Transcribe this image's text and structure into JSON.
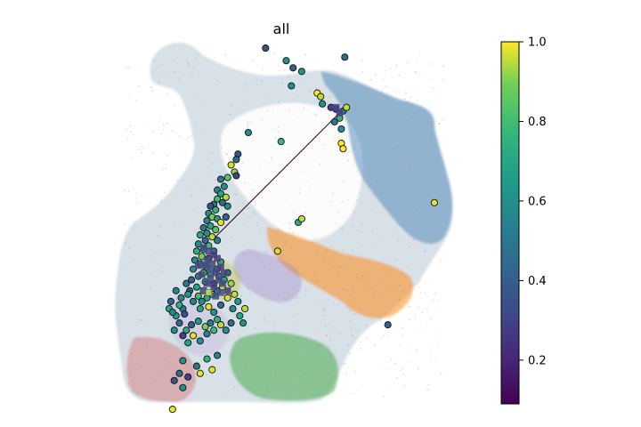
{
  "chart_data": {
    "type": "scatter",
    "title": "all",
    "xlabel": "",
    "ylabel": "",
    "axes_visible": false,
    "grid": false,
    "colorbar": {
      "colormap": "viridis",
      "range": [
        0.09,
        1.0
      ],
      "ticks": [
        0.2,
        0.4,
        0.6,
        0.8,
        1.0
      ],
      "tick_labels": [
        "0.2",
        "0.4",
        "0.6",
        "0.8",
        "1.0"
      ],
      "placement": "right"
    },
    "background_embedding": {
      "description_colors": [
        "#1f77b4",
        "#ff7f0e",
        "#2ca02c",
        "#d62728",
        "#9467bd",
        "#8c564b",
        "#bcbd22",
        "#aec7e8"
      ],
      "clusters": [
        {
          "name": "blue-grey outline",
          "color": "#9aaec0"
        },
        {
          "name": "blue",
          "color": "#3d7fb0"
        },
        {
          "name": "orange",
          "color": "#ff8c1a"
        },
        {
          "name": "green",
          "color": "#2ca02c"
        },
        {
          "name": "red",
          "color": "#d6504c"
        },
        {
          "name": "purple",
          "color": "#9b7fc4"
        },
        {
          "name": "olive",
          "color": "#bcbd22"
        }
      ]
    },
    "arrow": {
      "from": [
        0.295,
        0.46
      ],
      "to": [
        0.655,
        0.805
      ],
      "color": "#3b0f1a"
    },
    "points": [
      {
        "x": 0.44,
        "y": 0.985,
        "v": 0.35
      },
      {
        "x": 0.5,
        "y": 0.95,
        "v": 0.6
      },
      {
        "x": 0.52,
        "y": 0.93,
        "v": 0.4
      },
      {
        "x": 0.545,
        "y": 0.92,
        "v": 0.62
      },
      {
        "x": 0.67,
        "y": 0.96,
        "v": 0.45
      },
      {
        "x": 0.515,
        "y": 0.88,
        "v": 0.6
      },
      {
        "x": 0.59,
        "y": 0.86,
        "v": 1.0
      },
      {
        "x": 0.6,
        "y": 0.85,
        "v": 0.95
      },
      {
        "x": 0.605,
        "y": 0.83,
        "v": 0.62
      },
      {
        "x": 0.63,
        "y": 0.82,
        "v": 0.3
      },
      {
        "x": 0.645,
        "y": 0.815,
        "v": 0.25
      },
      {
        "x": 0.665,
        "y": 0.81,
        "v": 0.55
      },
      {
        "x": 0.675,
        "y": 0.82,
        "v": 0.95
      },
      {
        "x": 0.655,
        "y": 0.79,
        "v": 0.75
      },
      {
        "x": 0.64,
        "y": 0.78,
        "v": 0.5
      },
      {
        "x": 0.66,
        "y": 0.76,
        "v": 0.6
      },
      {
        "x": 0.66,
        "y": 0.72,
        "v": 1.0
      },
      {
        "x": 0.665,
        "y": 0.705,
        "v": 1.0
      },
      {
        "x": 0.39,
        "y": 0.75,
        "v": 0.58
      },
      {
        "x": 0.485,
        "y": 0.725,
        "v": 0.78
      },
      {
        "x": 0.93,
        "y": 0.555,
        "v": 0.98
      },
      {
        "x": 0.535,
        "y": 0.5,
        "v": 0.72
      },
      {
        "x": 0.545,
        "y": 0.51,
        "v": 0.95
      },
      {
        "x": 0.475,
        "y": 0.42,
        "v": 0.97
      },
      {
        "x": 0.795,
        "y": 0.215,
        "v": 0.4
      },
      {
        "x": 0.25,
        "y": 0.08,
        "v": 0.98
      },
      {
        "x": 0.36,
        "y": 0.69,
        "v": 0.35
      },
      {
        "x": 0.355,
        "y": 0.675,
        "v": 0.45
      },
      {
        "x": 0.34,
        "y": 0.66,
        "v": 0.97
      },
      {
        "x": 0.35,
        "y": 0.64,
        "v": 0.92
      },
      {
        "x": 0.31,
        "y": 0.62,
        "v": 0.5
      },
      {
        "x": 0.33,
        "y": 0.625,
        "v": 0.85
      },
      {
        "x": 0.355,
        "y": 0.63,
        "v": 0.3
      },
      {
        "x": 0.32,
        "y": 0.6,
        "v": 0.6
      },
      {
        "x": 0.3,
        "y": 0.59,
        "v": 0.55
      },
      {
        "x": 0.31,
        "y": 0.58,
        "v": 0.7
      },
      {
        "x": 0.3,
        "y": 0.565,
        "v": 0.8
      },
      {
        "x": 0.315,
        "y": 0.555,
        "v": 0.45
      },
      {
        "x": 0.325,
        "y": 0.57,
        "v": 0.95
      },
      {
        "x": 0.33,
        "y": 0.545,
        "v": 0.6
      },
      {
        "x": 0.29,
        "y": 0.55,
        "v": 0.5
      },
      {
        "x": 0.28,
        "y": 0.545,
        "v": 0.35
      },
      {
        "x": 0.295,
        "y": 0.535,
        "v": 0.75
      },
      {
        "x": 0.275,
        "y": 0.525,
        "v": 0.6
      },
      {
        "x": 0.285,
        "y": 0.515,
        "v": 0.9
      },
      {
        "x": 0.3,
        "y": 0.51,
        "v": 0.65
      },
      {
        "x": 0.27,
        "y": 0.505,
        "v": 0.55
      },
      {
        "x": 0.31,
        "y": 0.5,
        "v": 0.98
      },
      {
        "x": 0.325,
        "y": 0.515,
        "v": 0.4
      },
      {
        "x": 0.28,
        "y": 0.49,
        "v": 0.7
      },
      {
        "x": 0.26,
        "y": 0.485,
        "v": 0.5
      },
      {
        "x": 0.295,
        "y": 0.48,
        "v": 0.85
      },
      {
        "x": 0.27,
        "y": 0.47,
        "v": 0.62
      },
      {
        "x": 0.285,
        "y": 0.46,
        "v": 0.95
      },
      {
        "x": 0.25,
        "y": 0.465,
        "v": 0.72
      },
      {
        "x": 0.265,
        "y": 0.45,
        "v": 0.45
      },
      {
        "x": 0.3,
        "y": 0.45,
        "v": 0.55
      },
      {
        "x": 0.245,
        "y": 0.44,
        "v": 0.6
      },
      {
        "x": 0.275,
        "y": 0.435,
        "v": 0.8
      },
      {
        "x": 0.26,
        "y": 0.425,
        "v": 0.68
      },
      {
        "x": 0.29,
        "y": 0.42,
        "v": 0.5
      },
      {
        "x": 0.24,
        "y": 0.42,
        "v": 0.75
      },
      {
        "x": 0.255,
        "y": 0.405,
        "v": 0.9
      },
      {
        "x": 0.275,
        "y": 0.4,
        "v": 0.35
      },
      {
        "x": 0.235,
        "y": 0.395,
        "v": 0.58
      },
      {
        "x": 0.25,
        "y": 0.385,
        "v": 0.62
      },
      {
        "x": 0.27,
        "y": 0.375,
        "v": 0.7
      },
      {
        "x": 0.26,
        "y": 0.36,
        "v": 0.85
      },
      {
        "x": 0.28,
        "y": 0.355,
        "v": 0.6
      },
      {
        "x": 0.3,
        "y": 0.37,
        "v": 0.45
      },
      {
        "x": 0.31,
        "y": 0.39,
        "v": 0.72
      },
      {
        "x": 0.305,
        "y": 0.35,
        "v": 0.55
      },
      {
        "x": 0.29,
        "y": 0.33,
        "v": 0.3
      },
      {
        "x": 0.265,
        "y": 0.335,
        "v": 0.75
      },
      {
        "x": 0.245,
        "y": 0.35,
        "v": 0.55
      },
      {
        "x": 0.23,
        "y": 0.37,
        "v": 0.62
      },
      {
        "x": 0.225,
        "y": 0.34,
        "v": 0.4
      },
      {
        "x": 0.24,
        "y": 0.32,
        "v": 0.68
      },
      {
        "x": 0.26,
        "y": 0.31,
        "v": 0.98
      },
      {
        "x": 0.285,
        "y": 0.3,
        "v": 0.85
      },
      {
        "x": 0.3,
        "y": 0.31,
        "v": 0.6
      },
      {
        "x": 0.315,
        "y": 0.32,
        "v": 0.95
      },
      {
        "x": 0.32,
        "y": 0.34,
        "v": 0.7
      },
      {
        "x": 0.33,
        "y": 0.36,
        "v": 0.45
      },
      {
        "x": 0.34,
        "y": 0.33,
        "v": 0.92
      },
      {
        "x": 0.27,
        "y": 0.29,
        "v": 0.72
      },
      {
        "x": 0.255,
        "y": 0.28,
        "v": 0.6
      },
      {
        "x": 0.245,
        "y": 0.295,
        "v": 0.8
      },
      {
        "x": 0.22,
        "y": 0.31,
        "v": 0.38
      },
      {
        "x": 0.21,
        "y": 0.33,
        "v": 0.5
      },
      {
        "x": 0.215,
        "y": 0.3,
        "v": 0.64
      },
      {
        "x": 0.23,
        "y": 0.28,
        "v": 0.55
      },
      {
        "x": 0.25,
        "y": 0.26,
        "v": 0.7
      },
      {
        "x": 0.275,
        "y": 0.265,
        "v": 0.98
      },
      {
        "x": 0.29,
        "y": 0.25,
        "v": 0.62
      },
      {
        "x": 0.31,
        "y": 0.27,
        "v": 0.45
      },
      {
        "x": 0.33,
        "y": 0.29,
        "v": 0.97
      },
      {
        "x": 0.35,
        "y": 0.3,
        "v": 0.95
      },
      {
        "x": 0.36,
        "y": 0.28,
        "v": 0.66
      },
      {
        "x": 0.345,
        "y": 0.26,
        "v": 0.58
      },
      {
        "x": 0.3,
        "y": 0.23,
        "v": 0.75
      },
      {
        "x": 0.28,
        "y": 0.22,
        "v": 0.52
      },
      {
        "x": 0.265,
        "y": 0.21,
        "v": 0.9
      },
      {
        "x": 0.245,
        "y": 0.225,
        "v": 0.65
      },
      {
        "x": 0.225,
        "y": 0.215,
        "v": 0.4
      },
      {
        "x": 0.21,
        "y": 0.2,
        "v": 0.72
      },
      {
        "x": 0.2,
        "y": 0.185,
        "v": 0.3
      },
      {
        "x": 0.215,
        "y": 0.165,
        "v": 0.68
      },
      {
        "x": 0.23,
        "y": 0.185,
        "v": 0.98
      },
      {
        "x": 0.25,
        "y": 0.17,
        "v": 0.62
      },
      {
        "x": 0.27,
        "y": 0.19,
        "v": 0.55
      },
      {
        "x": 0.29,
        "y": 0.2,
        "v": 0.8
      },
      {
        "x": 0.31,
        "y": 0.215,
        "v": 0.95
      },
      {
        "x": 0.325,
        "y": 0.2,
        "v": 0.6
      },
      {
        "x": 0.34,
        "y": 0.22,
        "v": 0.45
      },
      {
        "x": 0.365,
        "y": 0.24,
        "v": 0.7
      },
      {
        "x": 0.38,
        "y": 0.26,
        "v": 0.95
      },
      {
        "x": 0.375,
        "y": 0.22,
        "v": 0.62
      },
      {
        "x": 0.19,
        "y": 0.22,
        "v": 0.42
      },
      {
        "x": 0.175,
        "y": 0.2,
        "v": 0.6
      },
      {
        "x": 0.18,
        "y": 0.24,
        "v": 0.66
      },
      {
        "x": 0.2,
        "y": 0.26,
        "v": 0.5
      },
      {
        "x": 0.19,
        "y": 0.27,
        "v": 0.75
      },
      {
        "x": 0.205,
        "y": 0.245,
        "v": 0.35
      },
      {
        "x": 0.195,
        "y": 0.29,
        "v": 0.6
      },
      {
        "x": 0.18,
        "y": 0.31,
        "v": 0.55
      },
      {
        "x": 0.165,
        "y": 0.28,
        "v": 0.45
      },
      {
        "x": 0.16,
        "y": 0.26,
        "v": 0.7
      },
      {
        "x": 0.17,
        "y": 0.25,
        "v": 0.58
      },
      {
        "x": 0.3,
        "y": 0.13,
        "v": 0.55
      },
      {
        "x": 0.27,
        "y": 0.12,
        "v": 0.75
      },
      {
        "x": 0.2,
        "y": 0.115,
        "v": 0.62
      },
      {
        "x": 0.19,
        "y": 0.08,
        "v": 0.45
      },
      {
        "x": 0.175,
        "y": 0.06,
        "v": 0.35
      },
      {
        "x": 0.285,
        "y": 0.09,
        "v": 0.98
      },
      {
        "x": 0.215,
        "y": 0.07,
        "v": 0.3
      },
      {
        "x": 0.24,
        "y": 0.1,
        "v": 0.5
      },
      {
        "x": 0.17,
        "y": -0.02,
        "v": 0.98
      },
      {
        "x": 0.2,
        "y": 0.04,
        "v": 0.62
      }
    ],
    "squares": [
      {
        "x": 0.655,
        "y": 0.805,
        "v": 0.28
      },
      {
        "x": 0.645,
        "y": 0.82,
        "v": 0.3
      },
      {
        "x": 0.26,
        "y": 0.43,
        "v": 0.3
      },
      {
        "x": 0.275,
        "y": 0.42,
        "v": 0.32
      },
      {
        "x": 0.29,
        "y": 0.41,
        "v": 0.25
      },
      {
        "x": 0.27,
        "y": 0.395,
        "v": 0.35
      },
      {
        "x": 0.285,
        "y": 0.385,
        "v": 0.33
      },
      {
        "x": 0.3,
        "y": 0.4,
        "v": 0.28
      },
      {
        "x": 0.28,
        "y": 0.37,
        "v": 0.38
      },
      {
        "x": 0.265,
        "y": 0.38,
        "v": 0.3
      },
      {
        "x": 0.295,
        "y": 0.36,
        "v": 0.3
      },
      {
        "x": 0.31,
        "y": 0.375,
        "v": 0.27
      },
      {
        "x": 0.305,
        "y": 0.34,
        "v": 0.32
      },
      {
        "x": 0.28,
        "y": 0.345,
        "v": 0.36
      },
      {
        "x": 0.255,
        "y": 0.355,
        "v": 0.3
      },
      {
        "x": 0.27,
        "y": 0.33,
        "v": 0.31
      },
      {
        "x": 0.29,
        "y": 0.32,
        "v": 0.29
      },
      {
        "x": 0.315,
        "y": 0.33,
        "v": 0.34
      },
      {
        "x": 0.245,
        "y": 0.38,
        "v": 0.3
      },
      {
        "x": 0.32,
        "y": 0.36,
        "v": 0.3
      },
      {
        "x": 0.26,
        "y": 0.31,
        "v": 0.33
      },
      {
        "x": 0.31,
        "y": 0.305,
        "v": 0.37
      },
      {
        "x": 0.33,
        "y": 0.31,
        "v": 0.26
      },
      {
        "x": 0.295,
        "y": 0.295,
        "v": 0.31
      },
      {
        "x": 0.275,
        "y": 0.305,
        "v": 0.95
      }
    ]
  }
}
